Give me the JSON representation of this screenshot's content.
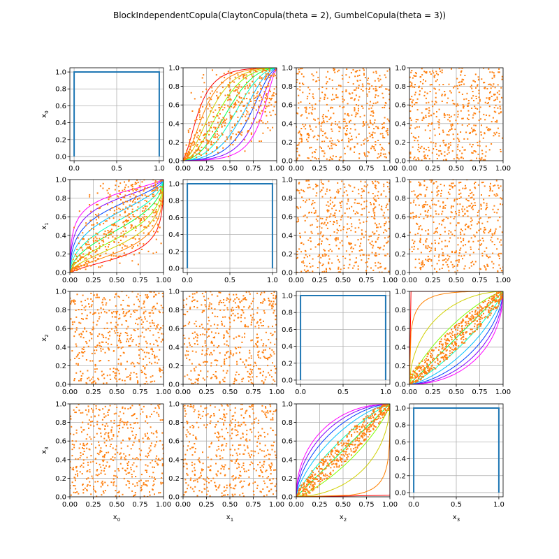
{
  "figure": {
    "title": "BlockIndependentCopula(ClaytonCopula(theta = 2), GumbelCopula(theta = 3))"
  },
  "colors": {
    "cdf_line": "#1f77b4",
    "samples": "#ff7f0e",
    "grid": "#b0b0b0",
    "contours": [
      "#ff0000",
      "#ff8000",
      "#d0d000",
      "#80ff00",
      "#00ff40",
      "#00ffc0",
      "#00c0ff",
      "#0040ff",
      "#8000ff",
      "#ff00ff"
    ]
  },
  "chart_data": {
    "type": "pairs",
    "variables": [
      "x0",
      "x1",
      "x2",
      "x3"
    ],
    "variable_labels": [
      {
        "base": "x",
        "sub": "0"
      },
      {
        "base": "x",
        "sub": "1"
      },
      {
        "base": "x",
        "sub": "2"
      },
      {
        "base": "x",
        "sub": "3"
      }
    ],
    "blocks": [
      {
        "copula": "ClaytonCopula",
        "theta": 2,
        "variables": [
          "x0",
          "x1"
        ]
      },
      {
        "copula": "GumbelCopula",
        "theta": 3,
        "variables": [
          "x2",
          "x3"
        ]
      }
    ],
    "diagonal": {
      "type": "line",
      "description": "marginal pdf (uniform)",
      "x": [
        0,
        0,
        1,
        1
      ],
      "y": [
        0,
        1,
        1,
        0
      ],
      "xlim": [
        -0.05,
        1.05
      ],
      "ylim": [
        -0.05,
        1.05
      ],
      "xticks": [
        "0.0",
        "0.5",
        "1.0"
      ],
      "yticks": [
        "0.0",
        "0.2",
        "0.4",
        "0.6",
        "0.8",
        "1.0"
      ]
    },
    "offdiagonal": {
      "type": "scatter",
      "sample_size_approx": 500,
      "xlim": [
        0,
        1
      ],
      "ylim": [
        0,
        1
      ],
      "xticks": [
        "0.00",
        "0.25",
        "0.50",
        "0.75",
        "1.00"
      ],
      "yticks": [
        "0.0",
        "0.2",
        "0.4",
        "0.6",
        "0.8",
        "1.0"
      ],
      "grid": true
    },
    "pairs_with_contours": [
      [
        0,
        1
      ],
      [
        1,
        0
      ],
      [
        2,
        3
      ],
      [
        3,
        2
      ]
    ],
    "contour_levels": 10
  }
}
